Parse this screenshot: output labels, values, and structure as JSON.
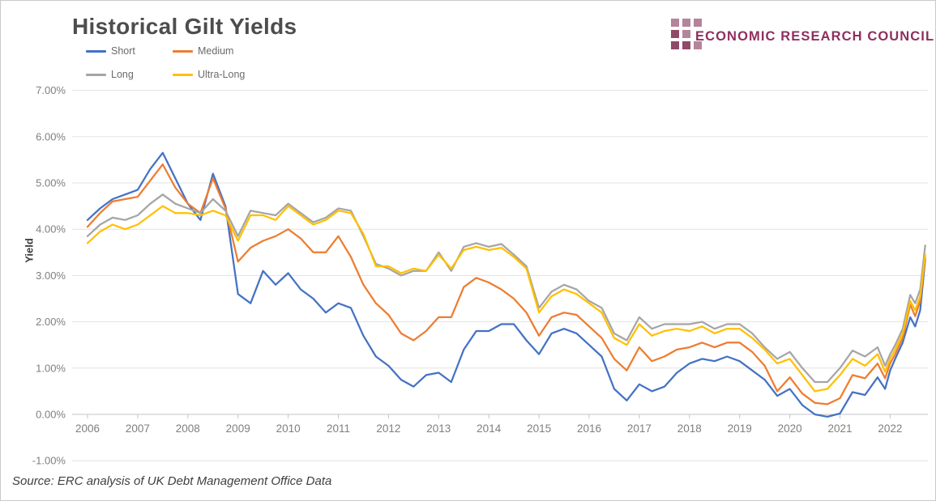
{
  "page": {
    "background": "#ffffff",
    "border_color": "#c9c9c9"
  },
  "header": {
    "title": "Historical Gilt Yields",
    "title_color": "#4d4d4d"
  },
  "logo": {
    "text": "ECONOMIC RESEARCH COUNCIL",
    "text_color": "#8e2f5e",
    "square_light": "#b4849b",
    "square_dark": "#91496a",
    "squares": [
      {
        "row": 0,
        "col": 0,
        "shade": "light"
      },
      {
        "row": 0,
        "col": 1,
        "shade": "light"
      },
      {
        "row": 0,
        "col": 2,
        "shade": "light"
      },
      {
        "row": 1,
        "col": 0,
        "shade": "dark"
      },
      {
        "row": 1,
        "col": 1,
        "shade": "light"
      },
      {
        "row": 2,
        "col": 0,
        "shade": "dark"
      },
      {
        "row": 2,
        "col": 1,
        "shade": "dark"
      },
      {
        "row": 2,
        "col": 2,
        "shade": "light"
      }
    ]
  },
  "source_note": "Source: ERC analysis of UK Debt Management Office Data",
  "chart_data": {
    "type": "line",
    "title": "Historical Gilt Yields",
    "xlabel": "",
    "ylabel": "Yield",
    "ylim": [
      -1,
      7
    ],
    "xlim": [
      2005.69,
      2022.78
    ],
    "grid": true,
    "legend_position": "top-left",
    "grid_color": "#e2e2e2",
    "axis_line_color": "#c4c4c4",
    "tick_label_color": "#7f7f7f",
    "x_ticks": [
      2006,
      2007,
      2008,
      2009,
      2010,
      2011,
      2012,
      2013,
      2014,
      2015,
      2016,
      2017,
      2018,
      2019,
      2020,
      2021,
      2022
    ],
    "y_tick_values": [
      7,
      6,
      5,
      4,
      3,
      2,
      1,
      0,
      -1
    ],
    "y_ticks": [
      "7.00%",
      "6.00%",
      "5.00%",
      "4.00%",
      "3.00%",
      "2.00%",
      "1.00%",
      "0.00%",
      "-1.00%"
    ],
    "x": [
      2006.0,
      2006.25,
      2006.5,
      2006.75,
      2007.0,
      2007.25,
      2007.5,
      2007.75,
      2008.0,
      2008.25,
      2008.5,
      2008.75,
      2009.0,
      2009.25,
      2009.5,
      2009.75,
      2010.0,
      2010.25,
      2010.5,
      2010.75,
      2011.0,
      2011.25,
      2011.5,
      2011.75,
      2012.0,
      2012.25,
      2012.5,
      2012.75,
      2013.0,
      2013.25,
      2013.5,
      2013.75,
      2014.0,
      2014.25,
      2014.5,
      2014.75,
      2015.0,
      2015.25,
      2015.5,
      2015.75,
      2016.0,
      2016.25,
      2016.5,
      2016.75,
      2017.0,
      2017.25,
      2017.5,
      2017.75,
      2018.0,
      2018.25,
      2018.5,
      2018.75,
      2019.0,
      2019.25,
      2019.5,
      2019.75,
      2020.0,
      2020.25,
      2020.5,
      2020.75,
      2021.0,
      2021.25,
      2021.5,
      2021.75,
      2021.9,
      2022.0,
      2022.1,
      2022.25,
      2022.4,
      2022.5,
      2022.6,
      2022.7
    ],
    "series": [
      {
        "name": "Short",
        "color": "#4472C4",
        "values": [
          4.2,
          4.45,
          4.65,
          4.75,
          4.85,
          5.3,
          5.65,
          5.1,
          4.55,
          4.2,
          5.2,
          4.5,
          2.6,
          2.4,
          3.1,
          2.8,
          3.05,
          2.7,
          2.5,
          2.2,
          2.4,
          2.3,
          1.7,
          1.25,
          1.05,
          0.75,
          0.6,
          0.85,
          0.9,
          0.7,
          1.4,
          1.8,
          1.8,
          1.95,
          1.95,
          1.6,
          1.3,
          1.75,
          1.85,
          1.75,
          1.5,
          1.25,
          0.55,
          0.3,
          0.65,
          0.5,
          0.6,
          0.9,
          1.1,
          1.2,
          1.15,
          1.25,
          1.15,
          0.95,
          0.75,
          0.4,
          0.55,
          0.2,
          0.0,
          -0.05,
          0.02,
          0.48,
          0.42,
          0.8,
          0.55,
          0.95,
          1.2,
          1.55,
          2.1,
          1.9,
          2.25,
          3.35
        ]
      },
      {
        "name": "Medium",
        "color": "#ED7D31",
        "values": [
          4.05,
          4.35,
          4.6,
          4.65,
          4.7,
          5.05,
          5.4,
          4.9,
          4.55,
          4.35,
          5.1,
          4.45,
          3.3,
          3.6,
          3.75,
          3.85,
          4.0,
          3.8,
          3.5,
          3.5,
          3.85,
          3.4,
          2.8,
          2.4,
          2.15,
          1.75,
          1.6,
          1.8,
          2.1,
          2.1,
          2.75,
          2.95,
          2.85,
          2.7,
          2.5,
          2.2,
          1.7,
          2.1,
          2.2,
          2.15,
          1.9,
          1.65,
          1.2,
          0.95,
          1.45,
          1.15,
          1.25,
          1.4,
          1.45,
          1.55,
          1.45,
          1.55,
          1.55,
          1.35,
          1.05,
          0.5,
          0.8,
          0.45,
          0.25,
          0.22,
          0.35,
          0.85,
          0.78,
          1.1,
          0.78,
          1.1,
          1.3,
          1.65,
          2.37,
          2.12,
          2.45,
          3.4
        ]
      },
      {
        "name": "Long",
        "color": "#A5A5A5",
        "values": [
          3.85,
          4.1,
          4.25,
          4.2,
          4.3,
          4.55,
          4.75,
          4.55,
          4.45,
          4.35,
          4.65,
          4.4,
          3.85,
          4.4,
          4.35,
          4.3,
          4.55,
          4.35,
          4.15,
          4.25,
          4.45,
          4.4,
          3.85,
          3.25,
          3.15,
          3.0,
          3.1,
          3.1,
          3.5,
          3.1,
          3.62,
          3.7,
          3.62,
          3.68,
          3.45,
          3.2,
          2.3,
          2.65,
          2.8,
          2.7,
          2.45,
          2.3,
          1.75,
          1.6,
          2.1,
          1.85,
          1.95,
          1.95,
          1.95,
          2.0,
          1.85,
          1.95,
          1.95,
          1.75,
          1.45,
          1.2,
          1.35,
          1.0,
          0.7,
          0.7,
          1.0,
          1.38,
          1.25,
          1.45,
          1.05,
          1.3,
          1.5,
          1.85,
          2.58,
          2.4,
          2.7,
          3.65
        ]
      },
      {
        "name": "Ultra-Long",
        "color": "#FFC000",
        "values": [
          3.7,
          3.95,
          4.1,
          4.0,
          4.1,
          4.3,
          4.5,
          4.35,
          4.35,
          4.3,
          4.4,
          4.3,
          3.75,
          4.3,
          4.3,
          4.2,
          4.5,
          4.3,
          4.1,
          4.2,
          4.4,
          4.35,
          3.9,
          3.2,
          3.2,
          3.05,
          3.15,
          3.1,
          3.45,
          3.15,
          3.55,
          3.62,
          3.55,
          3.6,
          3.4,
          3.15,
          2.2,
          2.55,
          2.7,
          2.6,
          2.4,
          2.2,
          1.65,
          1.5,
          1.95,
          1.7,
          1.8,
          1.85,
          1.8,
          1.9,
          1.75,
          1.85,
          1.85,
          1.65,
          1.4,
          1.1,
          1.2,
          0.85,
          0.5,
          0.55,
          0.85,
          1.2,
          1.05,
          1.3,
          0.92,
          1.2,
          1.4,
          1.75,
          2.45,
          2.25,
          2.55,
          3.45
        ]
      }
    ]
  }
}
